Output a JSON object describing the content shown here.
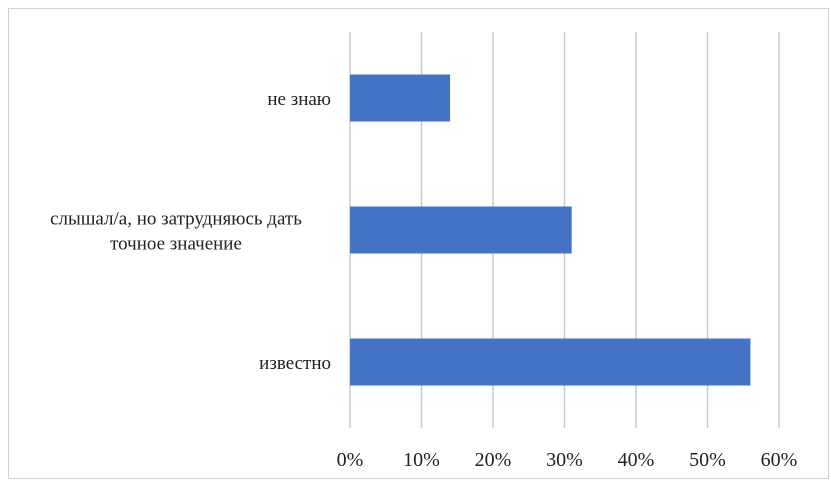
{
  "chart_data": {
    "type": "bar",
    "orientation": "horizontal",
    "categories": [
      [
        "не знаю"
      ],
      [
        "слышал/а, но затрудняюсь дать",
        "точное значение"
      ],
      [
        "известно"
      ]
    ],
    "values": [
      0.14,
      0.31,
      0.56
    ],
    "xlim": [
      0,
      0.6
    ],
    "x_ticks": [
      "0%",
      "10%",
      "20%",
      "30%",
      "40%",
      "50%",
      "60%"
    ],
    "bar_color": "#4472C4",
    "grid": true,
    "grid_color": "#cccccc",
    "legend": "none"
  }
}
